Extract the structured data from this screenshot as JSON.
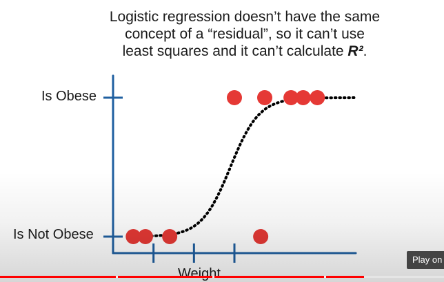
{
  "slide": {
    "caption_line1": "Logistic regression doesn’t have the same",
    "caption_line2": "concept of a “residual”, so it can’t use",
    "caption_line3_prefix": "least squares and it can’t calculate ",
    "caption_r2": "R²",
    "caption_line3_suffix": "."
  },
  "chart_data": {
    "type": "scatter",
    "title": "",
    "xlabel": "Weight",
    "ylabel": "",
    "y_categories": [
      "Is Not Obese",
      "Is Obese"
    ],
    "points": [
      {
        "x": 1.0,
        "y": 1
      },
      {
        "x": 1.75,
        "y": 1
      },
      {
        "x": 2.4,
        "y": 1
      },
      {
        "x": 2.7,
        "y": 1
      },
      {
        "x": 3.05,
        "y": 1
      },
      {
        "x": -1.5,
        "y": 0
      },
      {
        "x": -1.2,
        "y": 0
      },
      {
        "x": -0.6,
        "y": 0
      },
      {
        "x": 1.65,
        "y": 0
      }
    ],
    "curve": {
      "type": "logistic",
      "midpoint": 0.9,
      "steepness": 2.8
    },
    "xlim": [
      -2.0,
      4.0
    ],
    "x_ticks": [
      -1.0,
      0.0,
      1.0
    ],
    "colors": {
      "points": "#e53935",
      "axes": "#1f5fa0",
      "curve": "#000000"
    }
  },
  "player": {
    "play_on_label": "Play on",
    "progress": 0.82
  }
}
